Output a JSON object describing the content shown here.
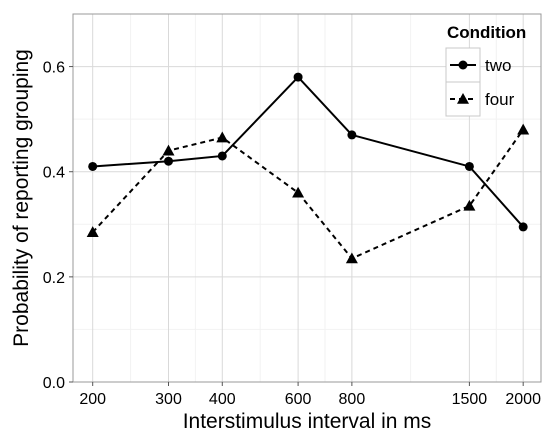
{
  "chart_data": {
    "type": "line",
    "xlabel": "Interstimulus interval in ms",
    "ylabel": "Probability of reporting grouping",
    "x_scale": "log",
    "x_ticks": [
      200,
      300,
      400,
      600,
      800,
      1500,
      2000
    ],
    "x_tick_labels": [
      "200",
      "300",
      "400",
      "600",
      "800",
      "1500",
      "2000"
    ],
    "xlim": [
      180,
      2200
    ],
    "y_ticks": [
      0.0,
      0.2,
      0.4,
      0.6
    ],
    "y_tick_labels": [
      "0.0",
      "0.2",
      "0.4",
      "0.6"
    ],
    "ylim": [
      0.0,
      0.7
    ],
    "grid": true,
    "legend": {
      "title": "Condition",
      "position": "top-right"
    },
    "series": [
      {
        "name": "two",
        "linestyle": "solid",
        "marker": "circle",
        "color": "#000000",
        "x": [
          200,
          300,
          400,
          600,
          800,
          1500,
          2000
        ],
        "y": [
          0.41,
          0.42,
          0.43,
          0.58,
          0.47,
          0.41,
          0.295
        ]
      },
      {
        "name": "four",
        "linestyle": "dashed",
        "marker": "triangle",
        "color": "#000000",
        "x": [
          200,
          300,
          400,
          600,
          800,
          1500,
          2000
        ],
        "y": [
          0.285,
          0.44,
          0.465,
          0.36,
          0.235,
          0.335,
          0.48
        ]
      }
    ]
  },
  "colors": {
    "panel_border": "#999999",
    "grid_major": "#d9d9d9",
    "grid_minor": "#f2f2f2",
    "legend_border": "#c8c8c8",
    "line": "#000000"
  }
}
